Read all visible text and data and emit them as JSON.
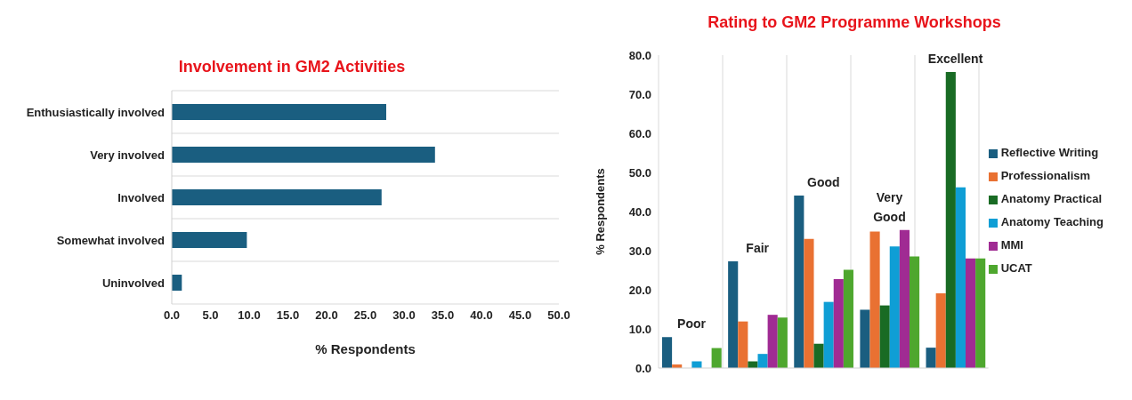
{
  "chart_data": [
    {
      "type": "bar",
      "title": "Involvement in GM2 Activities",
      "orientation": "horizontal",
      "categories": [
        "Enthusiastically involved",
        "Very involved",
        "Involved",
        "Somewhat involved",
        "Uninvolved"
      ],
      "values": [
        27.7,
        34.0,
        27.1,
        9.7,
        1.3
      ],
      "color": "#1a5e80",
      "xlabel": "% Respondents",
      "xlim": [
        0,
        50
      ],
      "xticks": [
        {
          "value": 0,
          "label": "0.0"
        },
        {
          "value": 5,
          "label": "5.0"
        },
        {
          "value": 10,
          "label": "10.0"
        },
        {
          "value": 15,
          "label": "15.0"
        },
        {
          "value": 20,
          "label": "20.0"
        },
        {
          "value": 25,
          "label": "25.0"
        },
        {
          "value": 30,
          "label": "30.0"
        },
        {
          "value": 35,
          "label": "35.0"
        },
        {
          "value": 40,
          "label": "40.0"
        },
        {
          "value": 45,
          "label": "45.0"
        },
        {
          "value": 50,
          "label": "50.0"
        }
      ],
      "grid": "y",
      "legend": false
    },
    {
      "type": "bar",
      "title": "Rating to GM2 Programme Workshops",
      "categories": [
        "Poor",
        "Fair",
        "Good",
        "Very Good",
        "Excellent"
      ],
      "ylabel": "% Respondents",
      "ylim": [
        0,
        80
      ],
      "yticks": [
        {
          "value": 0,
          "label": "0.0"
        },
        {
          "value": 10,
          "label": "10.0"
        },
        {
          "value": 20,
          "label": "20.0"
        },
        {
          "value": 30,
          "label": "30.0"
        },
        {
          "value": 40,
          "label": "40.0"
        },
        {
          "value": 50,
          "label": "50.0"
        },
        {
          "value": 60,
          "label": "60.0"
        },
        {
          "value": 70,
          "label": "70.0"
        },
        {
          "value": 80,
          "label": "80.0"
        }
      ],
      "grid": "x",
      "legend": "right",
      "series": [
        {
          "name": "Reflective Writing",
          "color": "#1a5e80",
          "values": [
            7.9,
            27.3,
            44.1,
            14.9,
            5.2
          ]
        },
        {
          "name": "Professionalism",
          "color": "#e97132",
          "values": [
            0.9,
            11.9,
            33.0,
            34.9,
            19.1
          ]
        },
        {
          "name": "Anatomy Practical",
          "color": "#196b24",
          "values": [
            0,
            1.7,
            6.2,
            16.0,
            75.7
          ]
        },
        {
          "name": "Anatomy Teaching",
          "color": "#0f9ed5",
          "values": [
            1.7,
            3.6,
            16.9,
            31.1,
            46.2
          ]
        },
        {
          "name": "MMI",
          "color": "#a02b93",
          "values": [
            0,
            13.6,
            22.7,
            35.3,
            28.0
          ]
        },
        {
          "name": "UCAT",
          "color": "#4ea72e",
          "values": [
            5.1,
            12.9,
            25.1,
            28.5,
            28.0
          ]
        }
      ]
    }
  ]
}
